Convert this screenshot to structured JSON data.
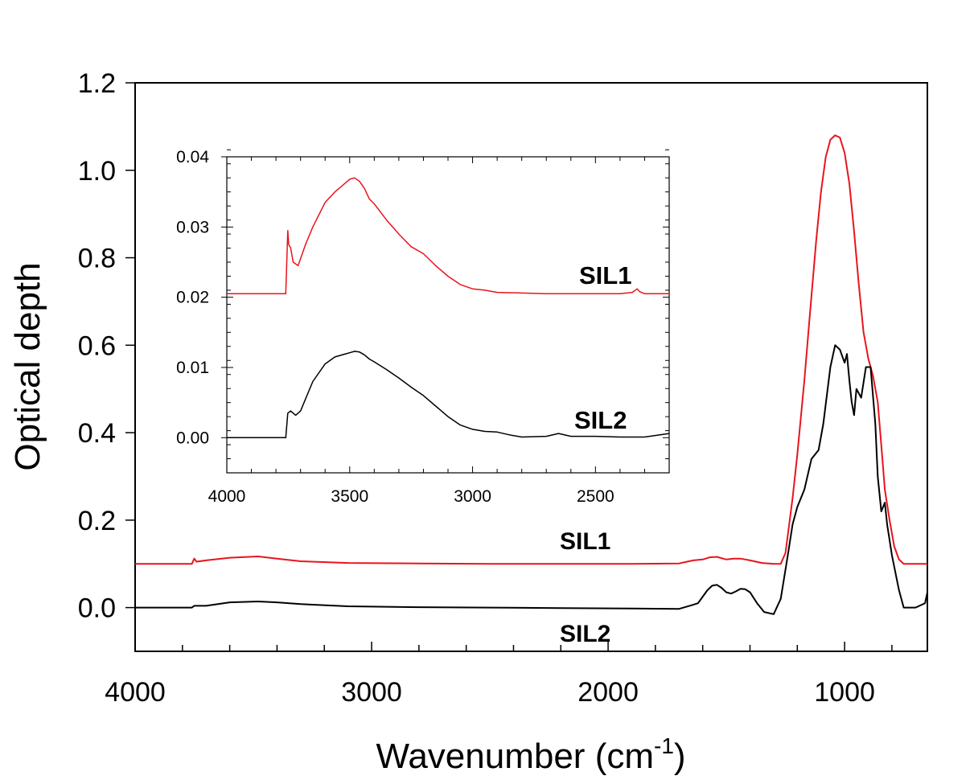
{
  "chart_data": [
    {
      "type": "line",
      "name": "main",
      "xlabel": "Wavenumber (cm",
      "xlabel_sup": "-1",
      "xlabel_close": ")",
      "ylabel": "Optical depth",
      "xlim": [
        4000,
        650
      ],
      "ylim": [
        -0.1,
        1.2
      ],
      "x_ticks": [
        4000,
        3000,
        2000,
        1000
      ],
      "x_tick_labels": [
        "4000",
        "3000",
        "2000",
        "1000"
      ],
      "x_minor_step": 200,
      "y_ticks": [
        0.0,
        0.2,
        0.4,
        0.6,
        0.8,
        1.0,
        1.2
      ],
      "y_tick_labels": [
        "0.0",
        "0.2",
        "0.4",
        "0.6",
        "0.8",
        "1.0",
        "1.2"
      ],
      "series": [
        {
          "name": "SIL1",
          "color": "#e8141c",
          "x": [
            4000,
            3760,
            3750,
            3740,
            3700,
            3600,
            3480,
            3400,
            3300,
            3100,
            2800,
            2500,
            2200,
            1900,
            1700,
            1640,
            1600,
            1570,
            1540,
            1500,
            1470,
            1440,
            1400,
            1350,
            1300,
            1270,
            1250,
            1220,
            1200,
            1170,
            1150,
            1120,
            1100,
            1080,
            1060,
            1040,
            1020,
            1000,
            980,
            960,
            940,
            920,
            900,
            880,
            860,
            840,
            830,
            810,
            790,
            770,
            750,
            700,
            650
          ],
          "y": [
            0.1,
            0.1,
            0.112,
            0.105,
            0.108,
            0.114,
            0.117,
            0.112,
            0.106,
            0.102,
            0.101,
            0.1,
            0.1,
            0.1,
            0.101,
            0.108,
            0.11,
            0.115,
            0.116,
            0.11,
            0.112,
            0.112,
            0.108,
            0.102,
            0.1,
            0.1,
            0.125,
            0.25,
            0.35,
            0.52,
            0.65,
            0.84,
            0.95,
            1.03,
            1.07,
            1.08,
            1.075,
            1.04,
            0.97,
            0.86,
            0.74,
            0.63,
            0.57,
            0.53,
            0.47,
            0.34,
            0.27,
            0.2,
            0.14,
            0.11,
            0.1,
            0.1,
            0.1
          ],
          "label": "SIL1"
        },
        {
          "name": "SIL2",
          "color": "#000000",
          "x": [
            4000,
            3760,
            3750,
            3700,
            3600,
            3480,
            3400,
            3300,
            3100,
            2800,
            2500,
            2200,
            1900,
            1700,
            1650,
            1620,
            1600,
            1580,
            1560,
            1540,
            1520,
            1500,
            1480,
            1460,
            1440,
            1420,
            1400,
            1370,
            1340,
            1300,
            1270,
            1240,
            1220,
            1200,
            1170,
            1140,
            1110,
            1090,
            1060,
            1040,
            1020,
            1000,
            990,
            980,
            970,
            960,
            950,
            930,
            910,
            890,
            870,
            860,
            845,
            830,
            820,
            800,
            770,
            750,
            700,
            660,
            650
          ],
          "y": [
            0.0,
            0.0,
            0.004,
            0.004,
            0.012,
            0.014,
            0.012,
            0.008,
            0.003,
            0.001,
            0.0,
            -0.001,
            -0.002,
            -0.003,
            0.005,
            0.01,
            0.025,
            0.04,
            0.05,
            0.052,
            0.045,
            0.035,
            0.032,
            0.037,
            0.043,
            0.042,
            0.035,
            0.01,
            -0.01,
            -0.015,
            0.02,
            0.12,
            0.19,
            0.23,
            0.27,
            0.34,
            0.36,
            0.42,
            0.55,
            0.6,
            0.59,
            0.56,
            0.58,
            0.52,
            0.47,
            0.44,
            0.5,
            0.48,
            0.55,
            0.55,
            0.42,
            0.3,
            0.22,
            0.24,
            0.19,
            0.12,
            0.04,
            0.0,
            0.0,
            0.01,
            0.035
          ],
          "label": "SIL2"
        }
      ]
    },
    {
      "type": "line",
      "name": "inset",
      "xlim": [
        4000,
        2200
      ],
      "ylim": [
        -0.005,
        0.04
      ],
      "x_ticks": [
        4000,
        3500,
        3000,
        2500
      ],
      "x_tick_labels": [
        "4000",
        "3500",
        "3000",
        "2500"
      ],
      "x_minor_step": 100,
      "y_ticks": [
        0.0,
        0.01,
        0.02,
        0.03,
        0.04
      ],
      "y_tick_labels": [
        "0.00",
        "0.01",
        "0.02",
        "0.03",
        "0.04"
      ],
      "y_minor_step": 0.002,
      "series": [
        {
          "name": "SIL1",
          "color": "#e8141c",
          "x": [
            4000,
            3850,
            3760,
            3752,
            3748,
            3740,
            3730,
            3710,
            3700,
            3680,
            3650,
            3600,
            3560,
            3520,
            3500,
            3480,
            3460,
            3440,
            3420,
            3400,
            3350,
            3300,
            3250,
            3200,
            3150,
            3100,
            3050,
            3000,
            2950,
            2900,
            2800,
            2700,
            2600,
            2500,
            2400,
            2350,
            2330,
            2320,
            2300,
            2200
          ],
          "y": [
            0.0205,
            0.0205,
            0.0205,
            0.0295,
            0.0275,
            0.027,
            0.025,
            0.0245,
            0.0255,
            0.0275,
            0.03,
            0.0335,
            0.035,
            0.0362,
            0.0368,
            0.037,
            0.0365,
            0.0355,
            0.034,
            0.0333,
            0.031,
            0.029,
            0.0272,
            0.0262,
            0.0245,
            0.023,
            0.0218,
            0.0212,
            0.021,
            0.0207,
            0.0206,
            0.0205,
            0.0205,
            0.0205,
            0.0205,
            0.0207,
            0.0212,
            0.0208,
            0.0205,
            0.0205
          ],
          "label": "SIL1"
        },
        {
          "name": "SIL2",
          "color": "#000000",
          "x": [
            4000,
            3850,
            3760,
            3752,
            3740,
            3720,
            3700,
            3680,
            3650,
            3600,
            3560,
            3520,
            3500,
            3480,
            3460,
            3440,
            3420,
            3400,
            3350,
            3300,
            3250,
            3200,
            3150,
            3100,
            3050,
            3000,
            2950,
            2900,
            2850,
            2800,
            2700,
            2650,
            2600,
            2500,
            2400,
            2300,
            2200
          ],
          "y": [
            0.0,
            0.0,
            0.0,
            0.0035,
            0.0038,
            0.0032,
            0.0038,
            0.0055,
            0.008,
            0.0105,
            0.0115,
            0.0119,
            0.0121,
            0.0123,
            0.0122,
            0.0118,
            0.0112,
            0.0108,
            0.0097,
            0.0085,
            0.0072,
            0.006,
            0.0045,
            0.003,
            0.0018,
            0.0012,
            0.0009,
            0.0008,
            0.0004,
            0.0001,
            0.0002,
            0.0006,
            0.0002,
            0.0002,
            0.0001,
            0.0001,
            0.0006
          ],
          "label": "SIL2"
        }
      ]
    }
  ]
}
